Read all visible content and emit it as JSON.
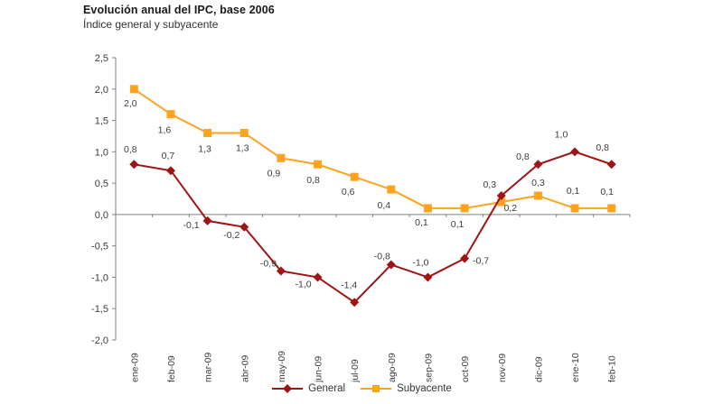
{
  "header": {
    "title": "Evolución anual del IPC, base 2006",
    "subtitle": "Índice general y subyacente"
  },
  "chart_data": {
    "type": "line",
    "title": "Evolución anual del IPC, base 2006",
    "subtitle": "Índice general y subyacente",
    "categories": [
      "ene-09",
      "feb-09",
      "mar-09",
      "abr-09",
      "may-09",
      "jun-09",
      "jul-09",
      "ago-09",
      "sep-09",
      "oct-09",
      "nov-09",
      "dic-09",
      "ene-10",
      "feb-10"
    ],
    "series": [
      {
        "name": "Subyacente",
        "marker": "square",
        "color": "#FFA21E",
        "values": [
          2.0,
          1.6,
          1.3,
          1.3,
          0.9,
          0.8,
          0.6,
          0.4,
          0.1,
          0.1,
          0.2,
          0.3,
          0.1,
          0.1
        ],
        "labels": [
          "2,0",
          "1,6",
          "1,3",
          "1,3",
          "0,9",
          "0,8",
          "0,6",
          "0,4",
          "0,1",
          "0,1",
          "0,2",
          "0,3",
          "0,1",
          "0,1"
        ],
        "label_offsets": [
          [
            -4,
            15
          ],
          [
            -7,
            17
          ],
          [
            -3,
            17
          ],
          [
            -2,
            16
          ],
          [
            -8,
            16
          ],
          [
            -5,
            17
          ],
          [
            -7,
            16
          ],
          [
            -8,
            17
          ],
          [
            -7,
            15
          ],
          [
            -8,
            17
          ],
          [
            10,
            6
          ],
          [
            0,
            -15
          ],
          [
            -2,
            -20
          ],
          [
            -5,
            -19
          ]
        ]
      },
      {
        "name": "General",
        "marker": "diamond",
        "color": "#9E1414",
        "values": [
          0.8,
          0.7,
          -0.1,
          -0.2,
          -0.9,
          -1.0,
          -1.4,
          -0.8,
          -1.0,
          -0.7,
          0.3,
          0.8,
          1.0,
          0.8
        ],
        "labels": [
          "0,8",
          "0,7",
          "-0,1",
          "-0,2",
          "-0,9",
          "-1,0",
          "-1,4",
          "-0,8",
          "-1,0",
          "-0,7",
          "0,3",
          "0,8",
          "1,0",
          "0,8"
        ],
        "label_offsets": [
          [
            -4,
            -17
          ],
          [
            -3,
            -17
          ],
          [
            -18,
            4
          ],
          [
            -14,
            8
          ],
          [
            -14,
            -9
          ],
          [
            -16,
            7
          ],
          [
            -6,
            -20
          ],
          [
            -10,
            -10
          ],
          [
            -8,
            -17
          ],
          [
            18,
            2
          ],
          [
            -13,
            -13
          ],
          [
            -17,
            -9
          ],
          [
            -15,
            -20
          ],
          [
            -10,
            -19
          ]
        ]
      }
    ],
    "ylim": [
      -2.0,
      2.5
    ],
    "ytick_step": 0.5,
    "ytick_labels": [
      "2,5",
      "2,0",
      "1,5",
      "1,0",
      "0,5",
      "0,0",
      "-0,5",
      "-1,0",
      "-1,5",
      "-2,0"
    ],
    "grid": "zero-line-only",
    "legend_position": "bottom",
    "legend_order": [
      "General",
      "Subyacente"
    ],
    "colors": {
      "axis": "#808080",
      "tick_text": "#3C3C3C",
      "data_label_text": "#3C3C3C"
    }
  }
}
